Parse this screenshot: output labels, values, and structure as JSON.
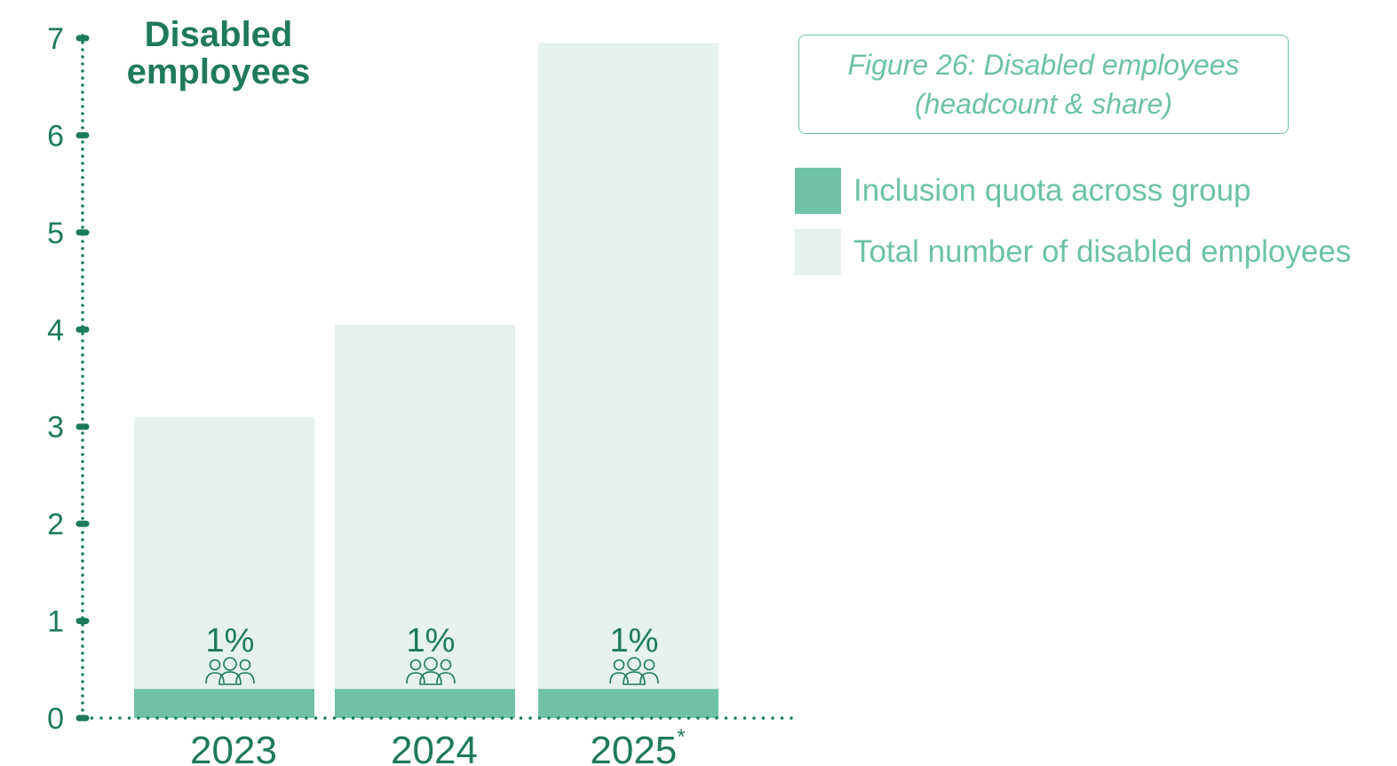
{
  "chart_data": {
    "type": "bar",
    "title": "Disabled employees",
    "caption": "Figure 26: Disabled employees (headcount & share)",
    "categories": [
      "2023",
      "2024",
      "2025"
    ],
    "category_footnote_marks": [
      "",
      "",
      "*"
    ],
    "series": [
      {
        "name": "Inclusion quota across group",
        "values": [
          0.3,
          0.3,
          0.3
        ],
        "color": "#6fc2a8"
      },
      {
        "name": "Total number of disabled employees",
        "values": [
          3.1,
          4.05,
          6.95
        ],
        "color": "#e5f2ee"
      }
    ],
    "bar_labels": [
      "1%",
      "1%",
      "1%"
    ],
    "bar_icon": "people-group-icon",
    "ylim": [
      0,
      7
    ],
    "yticks": [
      0,
      1,
      2,
      3,
      4,
      5,
      6,
      7
    ],
    "xlabel": "",
    "ylabel": "",
    "grid": false,
    "legend_position": "right"
  },
  "colors": {
    "axis": "#1a7a5a",
    "text": "#1f7a5c",
    "accent_light": "#6cc2a6"
  }
}
